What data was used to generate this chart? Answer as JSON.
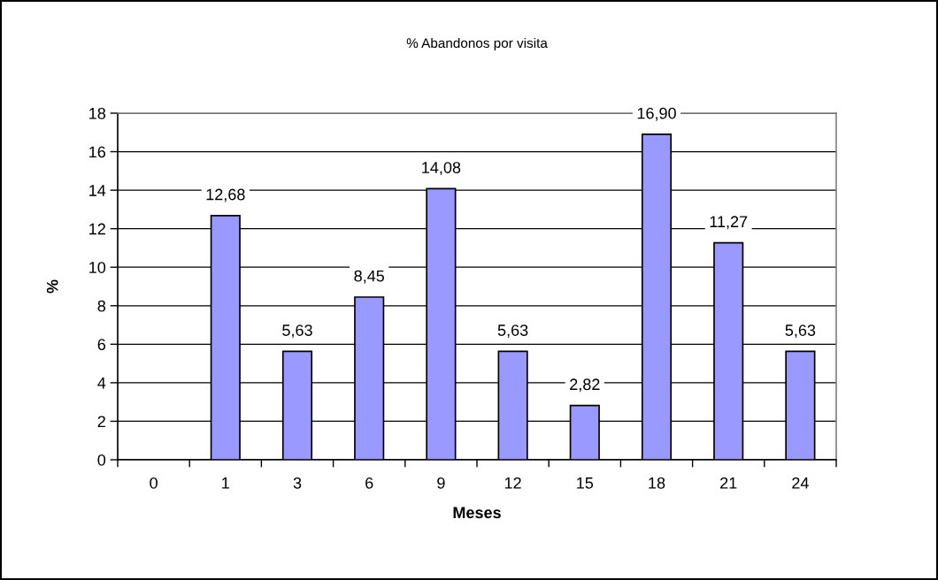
{
  "chart_data": {
    "type": "bar",
    "title": "% Abandonos por visita",
    "xlabel": "Meses",
    "ylabel": "%",
    "categories": [
      "0",
      "1",
      "3",
      "6",
      "9",
      "12",
      "15",
      "18",
      "21",
      "24"
    ],
    "values": [
      null,
      12.68,
      5.63,
      8.45,
      14.08,
      5.63,
      2.82,
      16.9,
      11.27,
      5.63
    ],
    "value_labels": [
      null,
      "12,68",
      "5,63",
      "8,45",
      "14,08",
      "5,63",
      "2,82",
      "16,90",
      "11,27",
      "5,63"
    ],
    "color": "#9999ff",
    "ylim": [
      0,
      18
    ],
    "yticks": [
      0,
      2,
      4,
      6,
      8,
      10,
      12,
      14,
      16,
      18
    ],
    "grid": "y"
  }
}
